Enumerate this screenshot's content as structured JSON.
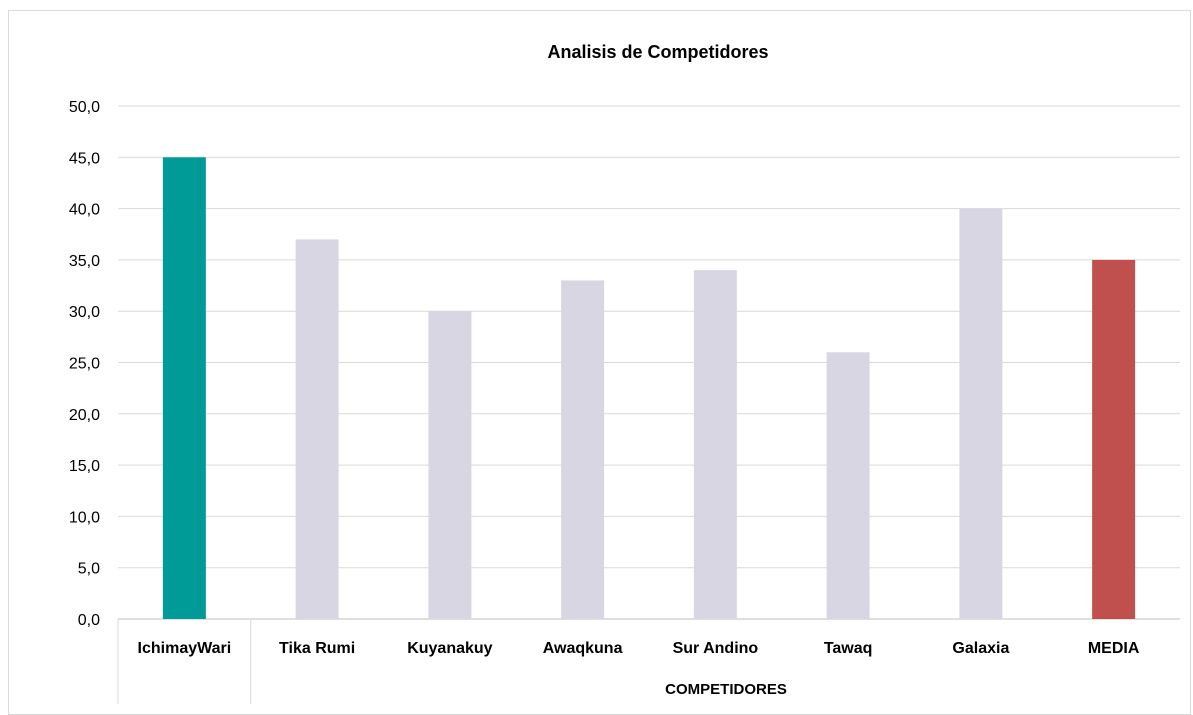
{
  "chart_data": {
    "type": "bar",
    "title": "Analisis de Competidores",
    "xlabel": "COMPETIDORES",
    "ylabel": "",
    "ylim": [
      0,
      50
    ],
    "yticks": [
      "0,0",
      "5,0",
      "10,0",
      "15,0",
      "20,0",
      "25,0",
      "30,0",
      "35,0",
      "40,0",
      "45,0",
      "50,0"
    ],
    "grid": true,
    "categories": [
      "IchimayWari",
      "Tika Rumi",
      "Kuyanakuy",
      "Awaqkuna",
      "Sur Andino",
      "Tawaq",
      "Galaxia",
      "MEDIA"
    ],
    "values": [
      45,
      37,
      30,
      33,
      34,
      26,
      40,
      35
    ],
    "colors": [
      "#009B96",
      "#D9D6E3",
      "#D9D6E3",
      "#D9D6E3",
      "#D9D6E3",
      "#D9D6E3",
      "#D9D6E3",
      "#C0504D"
    ]
  }
}
